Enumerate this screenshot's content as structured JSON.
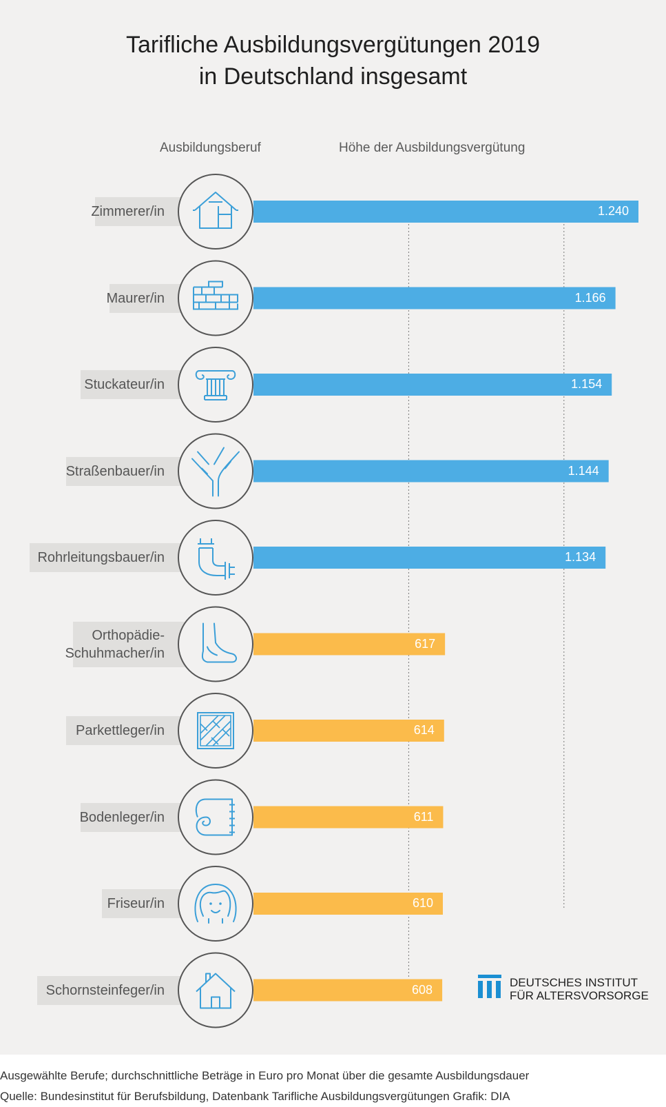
{
  "title_line1": "Tarifliche Ausbildungsvergütungen 2019",
  "title_line2": "in Deutschland insgesamt",
  "column_headers": {
    "occupation": "Ausbildungsberuf",
    "amount": "Höhe der Ausbildungsvergütung"
  },
  "logo": {
    "line1": "DEUTSCHES INSTITUT",
    "line2": "FÜR ALTERSVORSORGE"
  },
  "footnote": {
    "line1": "Ausgewählte Berufe; durchschnittliche Beträge in Euro pro Monat über die gesamte Ausbildungsdauer",
    "line2": "Quelle: Bundesinstitut für Berufsbildung, Datenbank Tarifliche Ausbildungsvergütungen  Grafik: DIA"
  },
  "colors": {
    "blue": "#4dade4",
    "orange": "#fbbb4b",
    "icon": "#3b9fd8",
    "circle": "#555555"
  },
  "chart_data": {
    "type": "bar",
    "orientation": "horizontal",
    "categories": [
      "Zimmerer/in",
      "Maurer/in",
      "Stuckateur/in",
      "Straßenbauer/in",
      "Rohrleitungsbauer/in",
      "Orthopädie-\nSchuhmacher/in",
      "Parkettleger/in",
      "Bodenleger/in",
      "Friseur/in",
      "Schornsteinfeger/in"
    ],
    "values": [
      1240,
      1166,
      1154,
      1144,
      1134,
      617,
      614,
      611,
      610,
      608
    ],
    "value_labels": [
      "1.240",
      "1.166",
      "1.154",
      "1.144",
      "1.134",
      "617",
      "614",
      "611",
      "610",
      "608"
    ],
    "bar_colors": [
      "blue",
      "blue",
      "blue",
      "blue",
      "blue",
      "orange",
      "orange",
      "orange",
      "orange",
      "orange"
    ],
    "icons": [
      "house-frame-icon",
      "brick-wall-icon",
      "column-capital-icon",
      "road-junction-icon",
      "pipe-icon",
      "foot-icon",
      "parquet-icon",
      "floor-roll-icon",
      "hairdresser-face-icon",
      "house-chimney-icon"
    ],
    "xlim": [
      0,
      1240
    ],
    "gridlines": [
      500,
      1000
    ],
    "title": "Tarifliche Ausbildungsvergütungen 2019 in Deutschland insgesamt"
  }
}
